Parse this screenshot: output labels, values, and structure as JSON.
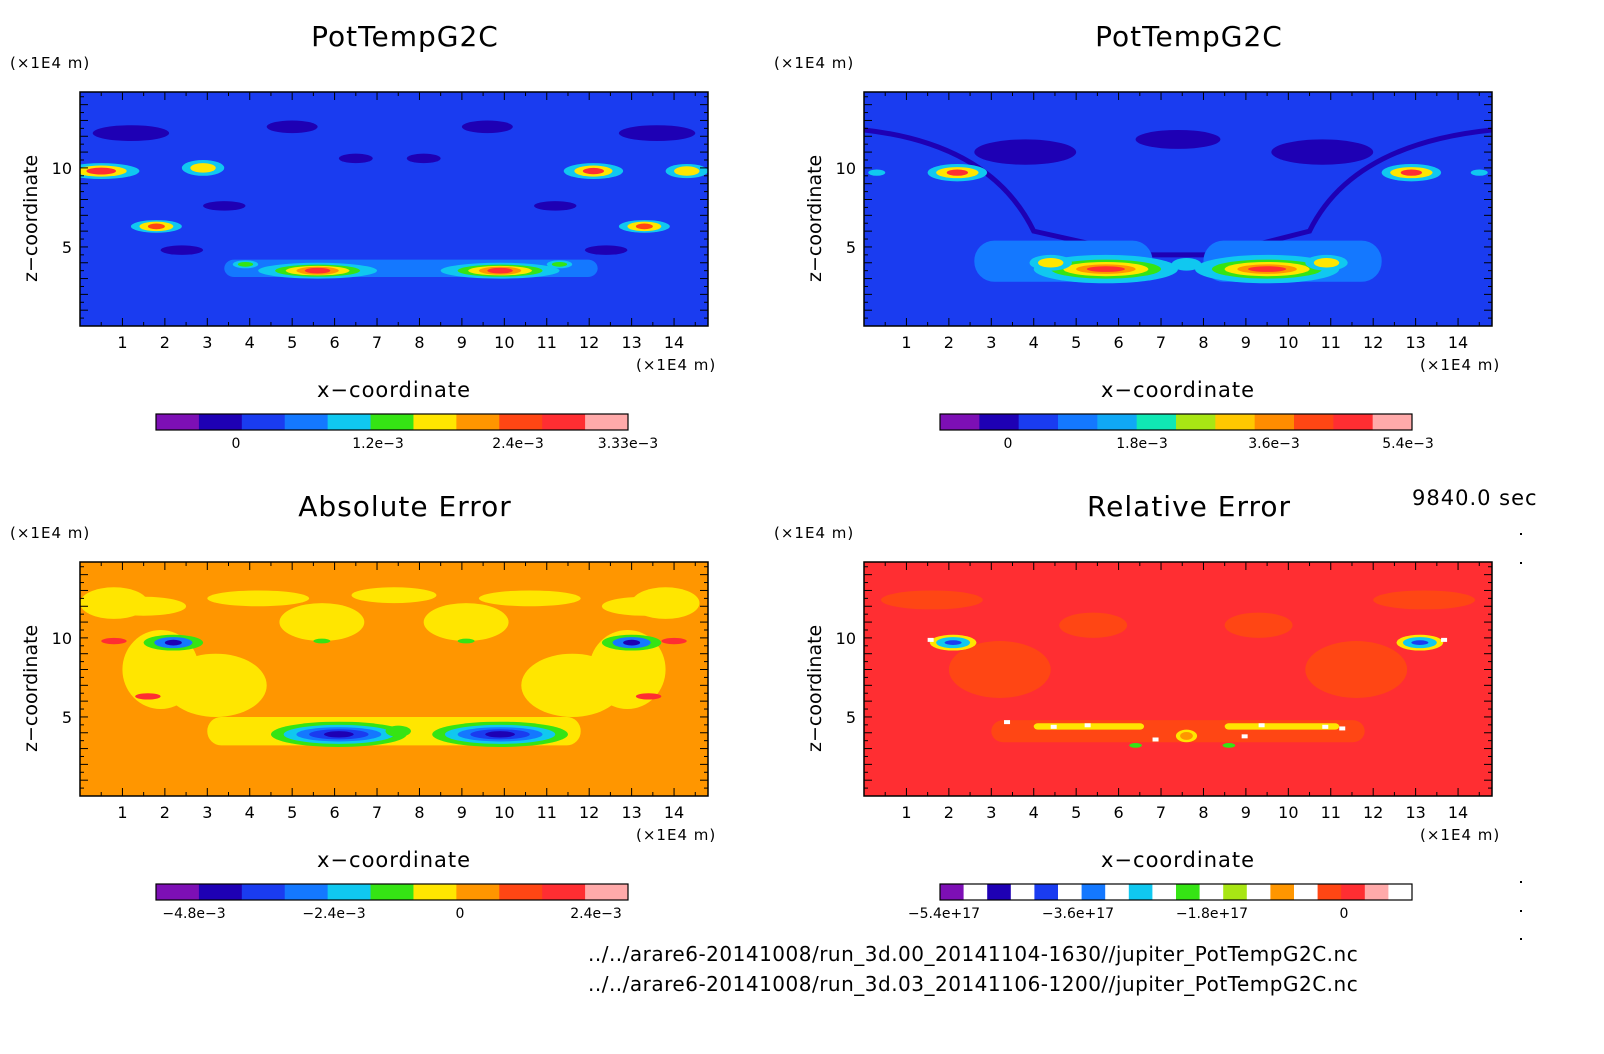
{
  "time_label": "9840.0 sec",
  "files": [
    "../../arare6-20141008/run_3d.00_20141104-1630//jupiter_PotTempG2C.nc",
    "../../arare6-20141008/run_3d.03_20141106-1200//jupiter_PotTempG2C.nc"
  ],
  "colors": {
    "purple": "#7d0fb5",
    "navy": "#1e00b4",
    "blue": "#1a3cf0",
    "mid_blue": "#1478ff",
    "cyan": "#10c8f0",
    "green": "#35e414",
    "yellow": "#ffe600",
    "orange": "#ff9600",
    "red_orange": "#ff4614",
    "red": "#ff2e32",
    "pink": "#ffaaaa",
    "white": "#ffffff"
  },
  "panels": [
    {
      "title": "PotTempG2C",
      "xlabel": "x−coordinate",
      "ylabel": "z−coordinate",
      "x_unit": "(×1E4 m)",
      "z_unit": "(×1E4 m)",
      "x_ticks": [
        "1",
        "2",
        "3",
        "4",
        "5",
        "6",
        "7",
        "8",
        "9",
        "10",
        "11",
        "12",
        "13",
        "14"
      ],
      "z_ticks": [
        "5",
        "10"
      ],
      "background_level": "blue",
      "colorbar": {
        "colors": [
          "#7d0fb5",
          "#1e00b4",
          "#1a3cf0",
          "#1478ff",
          "#10c8f0",
          "#35e414",
          "#ffe600",
          "#ff9600",
          "#ff4614",
          "#ff2e32",
          "#ffaaaa"
        ],
        "labels": [
          "0",
          "1.2e−3",
          "2.4e−3",
          "3.33e−3"
        ]
      }
    },
    {
      "title": "PotTempG2C",
      "xlabel": "x−coordinate",
      "ylabel": "z−coordinate",
      "x_unit": "(×1E4 m)",
      "z_unit": "(×1E4 m)",
      "x_ticks": [
        "1",
        "2",
        "3",
        "4",
        "5",
        "6",
        "7",
        "8",
        "9",
        "10",
        "11",
        "12",
        "13",
        "14"
      ],
      "z_ticks": [
        "5",
        "10"
      ],
      "background_level": "blue",
      "colorbar": {
        "colors": [
          "#7d0fb5",
          "#1e00b4",
          "#1a3cf0",
          "#1478ff",
          "#10a8f5",
          "#10e8b4",
          "#a8e614",
          "#ffc800",
          "#ff8c00",
          "#ff4614",
          "#ff2e32",
          "#ffaaaa"
        ],
        "labels": [
          "0",
          "1.8e−3",
          "3.6e−3",
          "5.4e−3"
        ]
      }
    },
    {
      "title": "Absolute Error",
      "xlabel": "x−coordinate",
      "ylabel": "z−coordinate",
      "x_unit": "(×1E4 m)",
      "z_unit": "(×1E4 m)",
      "x_ticks": [
        "1",
        "2",
        "3",
        "4",
        "5",
        "6",
        "7",
        "8",
        "9",
        "10",
        "11",
        "12",
        "13",
        "14"
      ],
      "z_ticks": [
        "5",
        "10"
      ],
      "background_level": "orange",
      "colorbar": {
        "colors": [
          "#7d0fb5",
          "#1e00b4",
          "#1a3cf0",
          "#1478ff",
          "#10c8f0",
          "#35e414",
          "#ffe600",
          "#ff9600",
          "#ff4614",
          "#ff2e32",
          "#ffaaaa"
        ],
        "labels": [
          "−4.8e−3",
          "−2.4e−3",
          "0",
          "2.4e−3"
        ]
      }
    },
    {
      "title": "Relative Error",
      "xlabel": "x−coordinate",
      "ylabel": "z−coordinate",
      "x_unit": "(×1E4 m)",
      "z_unit": "(×1E4 m)",
      "x_ticks": [
        "1",
        "2",
        "3",
        "4",
        "5",
        "6",
        "7",
        "8",
        "9",
        "10",
        "11",
        "12",
        "13",
        "14"
      ],
      "z_ticks": [
        "5",
        "10"
      ],
      "background_level": "red",
      "colorbar": {
        "colors": [
          "#7d0fb5",
          "#ffffff",
          "#1e00b4",
          "#ffffff",
          "#1a3cf0",
          "#ffffff",
          "#1478ff",
          "#ffffff",
          "#10c8f0",
          "#ffffff",
          "#35e414",
          "#ffffff",
          "#a8e614",
          "#ffffff",
          "#ff9600",
          "#ffffff",
          "#ff4614",
          "#ff2e32",
          "#ffaaaa",
          "#ffffff"
        ],
        "labels": [
          "−5.4e+17",
          "−3.6e+17",
          "−1.8e+17",
          "0"
        ]
      }
    }
  ],
  "chart_data": [
    {
      "type": "heatmap",
      "title": "PotTempG2C",
      "xlabel": "x−coordinate",
      "ylabel": "z−coordinate",
      "x_unit": "×1E4 m",
      "z_unit": "×1E4 m",
      "xlim": [
        0,
        14.8
      ],
      "ylim": [
        0,
        14.8
      ],
      "background": "blue",
      "features": [
        {
          "x": 5.6,
          "z": 3.3,
          "level": "red"
        },
        {
          "x": 9.9,
          "z": 3.3,
          "level": "red"
        },
        {
          "x": 1.8,
          "z": 6.3,
          "level": "red_orange"
        },
        {
          "x": 13.3,
          "z": 6.3,
          "level": "red_orange"
        },
        {
          "x": 0.2,
          "z": 9.8,
          "level": "red"
        },
        {
          "x": 2.9,
          "z": 9.8,
          "level": "yellow"
        },
        {
          "x": 12.1,
          "z": 9.8,
          "level": "red"
        },
        {
          "x": 14.5,
          "z": 9.8,
          "level": "yellow"
        }
      ],
      "colorbar": {
        "ticks": [
          0,
          0.0012,
          0.0024,
          0.00333
        ]
      }
    },
    {
      "type": "heatmap",
      "title": "PotTempG2C",
      "xlabel": "x−coordinate",
      "ylabel": "z−coordinate",
      "x_unit": "×1E4 m",
      "z_unit": "×1E4 m",
      "xlim": [
        0,
        14.8
      ],
      "ylim": [
        0,
        14.8
      ],
      "background": "blue",
      "features": [
        {
          "x": 5.7,
          "z": 3.3,
          "level": "red"
        },
        {
          "x": 9.5,
          "z": 3.3,
          "level": "red"
        },
        {
          "x": 2.2,
          "z": 9.7,
          "level": "red"
        },
        {
          "x": 12.9,
          "z": 9.7,
          "level": "red"
        }
      ],
      "colorbar": {
        "ticks": [
          0,
          0.0018,
          0.0036,
          0.0054
        ]
      }
    },
    {
      "type": "heatmap",
      "title": "Absolute Error",
      "xlabel": "x−coordinate",
      "ylabel": "z−coordinate",
      "x_unit": "×1E4 m",
      "z_unit": "×1E4 m",
      "xlim": [
        0,
        14.8
      ],
      "ylim": [
        0,
        14.8
      ],
      "background": "orange",
      "features": [
        {
          "x": 6.1,
          "z": 3.4,
          "level": "navy"
        },
        {
          "x": 9.9,
          "z": 3.4,
          "level": "navy"
        },
        {
          "x": 2.2,
          "z": 9.7,
          "level": "navy"
        },
        {
          "x": 13.0,
          "z": 9.7,
          "level": "navy"
        }
      ],
      "colorbar": {
        "ticks": [
          -0.0048,
          -0.0024,
          0,
          0.0024
        ]
      }
    },
    {
      "type": "heatmap",
      "title": "Relative Error",
      "xlabel": "x−coordinate",
      "ylabel": "z−coordinate",
      "x_unit": "×1E4 m",
      "z_unit": "×1E4 m",
      "xlim": [
        0,
        14.8
      ],
      "ylim": [
        0,
        14.8
      ],
      "background": "red",
      "features": [
        {
          "x": 2.1,
          "z": 9.7,
          "level": "blue"
        },
        {
          "x": 13.1,
          "z": 9.7,
          "level": "blue"
        }
      ],
      "colorbar": {
        "ticks": [
          -5.4e+17,
          -3.6e+17,
          -1.8e+17,
          0
        ]
      }
    }
  ]
}
